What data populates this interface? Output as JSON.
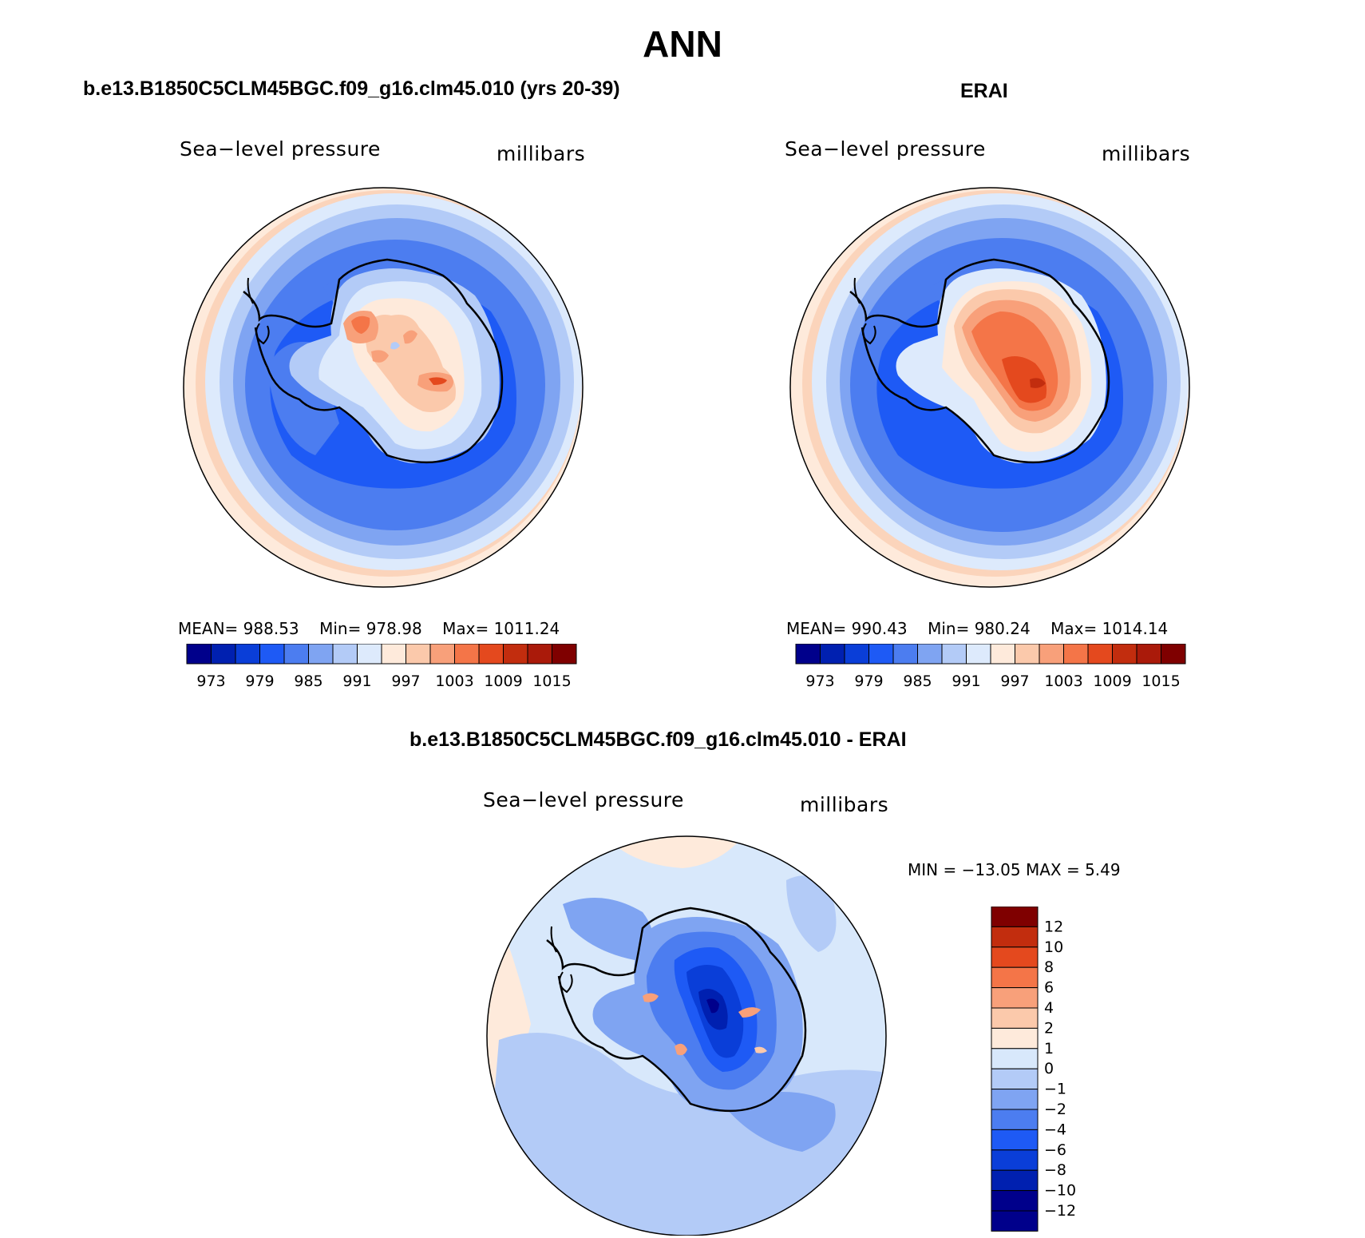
{
  "title": "ANN",
  "colors": {
    "abs_palette": [
      "#00008b",
      "#0020b0",
      "#0a3ed8",
      "#1e5af5",
      "#4c7df0",
      "#7fa4f2",
      "#b3cbf7",
      "#ddeafc",
      "#feeadb",
      "#fbc9ab",
      "#f8a07a",
      "#f47548",
      "#e4491e",
      "#c22d0e",
      "#aa1a0a",
      "#7f0000"
    ],
    "diff_palette": [
      "#00008b",
      "#0020b0",
      "#0a3ed8",
      "#1e5af5",
      "#4c7df0",
      "#7fa4f2",
      "#b3cbf7",
      "#d8e8fb",
      "#feeadb",
      "#fbc9ab",
      "#f8a07a",
      "#f47548",
      "#e4491e",
      "#c22d0e",
      "#7f0000"
    ]
  },
  "panels": {
    "model": {
      "title": "b.e13.B1850C5CLM45BGC.f09_g16.clm45.010 (yrs 20-39)",
      "left_label": "Sea−level pressure",
      "right_label": "millibars",
      "mean_label": "MEAN=",
      "mean": "988.53",
      "min_label": "Min=",
      "min": "978.98",
      "max_label": "Max=",
      "max": "1011.24"
    },
    "obs": {
      "title": "ERAI",
      "left_label": "Sea−level pressure",
      "right_label": "millibars",
      "mean_label": "MEAN=",
      "mean": "990.43",
      "min_label": "Min=",
      "min": "980.24",
      "max_label": "Max=",
      "max": "1014.14"
    },
    "diff": {
      "title": "b.e13.B1850C5CLM45BGC.f09_g16.clm45.010 - ERAI",
      "left_label": "Sea−level pressure",
      "right_label": "millibars",
      "minmax_text": "MIN = −13.05 MAX =    5.49"
    }
  },
  "abs_colorbar_labels": [
    "973",
    "979",
    "985",
    "991",
    "997",
    "1003",
    "1009",
    "1015"
  ],
  "diff_colorbar_labels": [
    "12",
    "10",
    "8",
    "6",
    "4",
    "2",
    "1",
    "0",
    "−1",
    "−2",
    "−4",
    "−6",
    "−8",
    "−10",
    "−12"
  ]
}
